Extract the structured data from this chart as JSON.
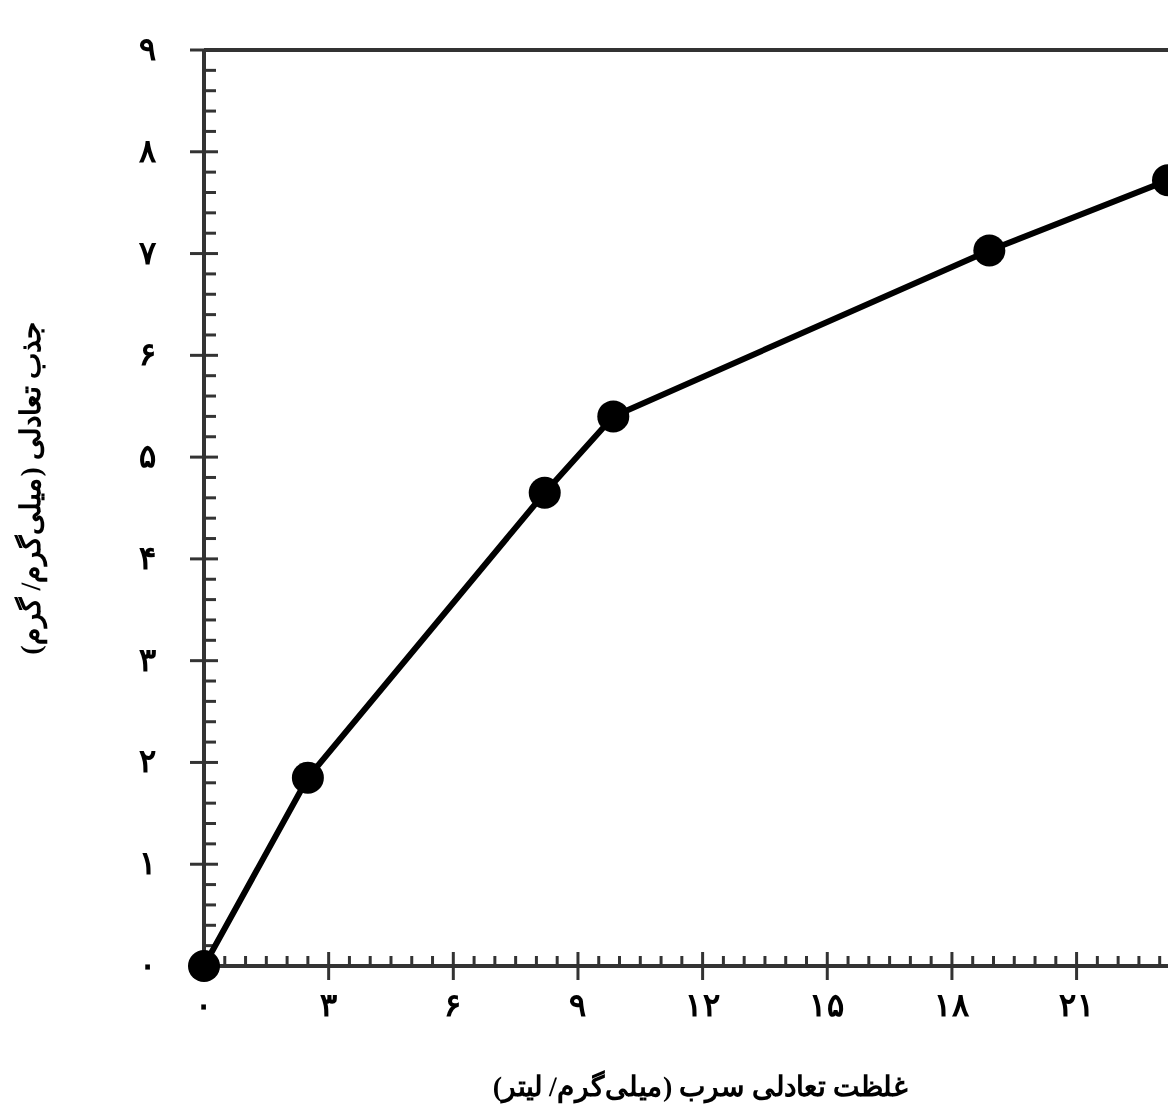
{
  "chart_data": {
    "type": "line",
    "xlabel": "غلظت تعادلی سرب (میلی‌گرم/ لیتر)",
    "ylabel": "جذب تعادلی (میلی‌گرم/ گرم)",
    "x": [
      0,
      2.5,
      8.2,
      9.85,
      18.9,
      23.2
    ],
    "series": [
      {
        "color": "#000000",
        "values": [
          0,
          1.85,
          4.65,
          5.4,
          7.03,
          7.72
        ]
      }
    ],
    "xlim": [
      0,
      23.2
    ],
    "ylim": [
      0,
      9
    ],
    "xticks": [
      {
        "value": 0,
        "label": "۰"
      },
      {
        "value": 0.5,
        "label": null
      },
      {
        "value": 1,
        "label": null
      },
      {
        "value": 1.5,
        "label": null
      },
      {
        "value": 2,
        "label": null
      },
      {
        "value": 2.5,
        "label": null
      },
      {
        "value": 3,
        "label": "۳"
      },
      {
        "value": 3.5,
        "label": null
      },
      {
        "value": 4,
        "label": null
      },
      {
        "value": 4.5,
        "label": null
      },
      {
        "value": 5,
        "label": null
      },
      {
        "value": 5.5,
        "label": null
      },
      {
        "value": 6,
        "label": "۶"
      },
      {
        "value": 6.5,
        "label": null
      },
      {
        "value": 7,
        "label": null
      },
      {
        "value": 7.5,
        "label": null
      },
      {
        "value": 8,
        "label": null
      },
      {
        "value": 8.5,
        "label": null
      },
      {
        "value": 9,
        "label": "۹"
      },
      {
        "value": 9.5,
        "label": null
      },
      {
        "value": 10,
        "label": null
      },
      {
        "value": 10.5,
        "label": null
      },
      {
        "value": 11,
        "label": null
      },
      {
        "value": 11.5,
        "label": null
      },
      {
        "value": 12,
        "label": "۱۲"
      },
      {
        "value": 12.5,
        "label": null
      },
      {
        "value": 13,
        "label": null
      },
      {
        "value": 13.5,
        "label": null
      },
      {
        "value": 14,
        "label": null
      },
      {
        "value": 14.5,
        "label": null
      },
      {
        "value": 15,
        "label": "۱۵"
      },
      {
        "value": 15.5,
        "label": null
      },
      {
        "value": 16,
        "label": null
      },
      {
        "value": 16.5,
        "label": null
      },
      {
        "value": 17,
        "label": null
      },
      {
        "value": 17.5,
        "label": null
      },
      {
        "value": 18,
        "label": "۱۸"
      },
      {
        "value": 18.5,
        "label": null
      },
      {
        "value": 19,
        "label": null
      },
      {
        "value": 19.5,
        "label": null
      },
      {
        "value": 20,
        "label": null
      },
      {
        "value": 20.5,
        "label": null
      },
      {
        "value": 21,
        "label": "۲۱"
      },
      {
        "value": 21.5,
        "label": null
      },
      {
        "value": 22,
        "label": null
      },
      {
        "value": 22.5,
        "label": null
      },
      {
        "value": 23,
        "label": null
      }
    ],
    "yticks": [
      {
        "value": 0,
        "label": "۰"
      },
      {
        "value": 0.2,
        "label": null
      },
      {
        "value": 0.4,
        "label": null
      },
      {
        "value": 0.6,
        "label": null
      },
      {
        "value": 0.8,
        "label": null
      },
      {
        "value": 1,
        "label": "۱"
      },
      {
        "value": 1.2,
        "label": null
      },
      {
        "value": 1.4,
        "label": null
      },
      {
        "value": 1.6,
        "label": null
      },
      {
        "value": 1.8,
        "label": null
      },
      {
        "value": 2,
        "label": "۲"
      },
      {
        "value": 2.2,
        "label": null
      },
      {
        "value": 2.4,
        "label": null
      },
      {
        "value": 2.6,
        "label": null
      },
      {
        "value": 2.8,
        "label": null
      },
      {
        "value": 3,
        "label": "۳"
      },
      {
        "value": 3.2,
        "label": null
      },
      {
        "value": 3.4,
        "label": null
      },
      {
        "value": 3.6,
        "label": null
      },
      {
        "value": 3.8,
        "label": null
      },
      {
        "value": 4,
        "label": "۴"
      },
      {
        "value": 4.2,
        "label": null
      },
      {
        "value": 4.4,
        "label": null
      },
      {
        "value": 4.6,
        "label": null
      },
      {
        "value": 4.8,
        "label": null
      },
      {
        "value": 5,
        "label": "۵"
      },
      {
        "value": 5.2,
        "label": null
      },
      {
        "value": 5.4,
        "label": null
      },
      {
        "value": 5.6,
        "label": null
      },
      {
        "value": 5.8,
        "label": null
      },
      {
        "value": 6,
        "label": "۶"
      },
      {
        "value": 6.2,
        "label": null
      },
      {
        "value": 6.4,
        "label": null
      },
      {
        "value": 6.6,
        "label": null
      },
      {
        "value": 6.8,
        "label": null
      },
      {
        "value": 7,
        "label": "۷"
      },
      {
        "value": 7.2,
        "label": null
      },
      {
        "value": 7.4,
        "label": null
      },
      {
        "value": 7.6,
        "label": null
      },
      {
        "value": 7.8,
        "label": null
      },
      {
        "value": 8,
        "label": "۸"
      },
      {
        "value": 8.2,
        "label": null
      },
      {
        "value": 8.4,
        "label": null
      },
      {
        "value": 8.6,
        "label": null
      },
      {
        "value": 8.8,
        "label": null
      },
      {
        "value": 9,
        "label": "۹"
      }
    ],
    "grid": false,
    "marker": "circle",
    "line_style": "solid"
  }
}
